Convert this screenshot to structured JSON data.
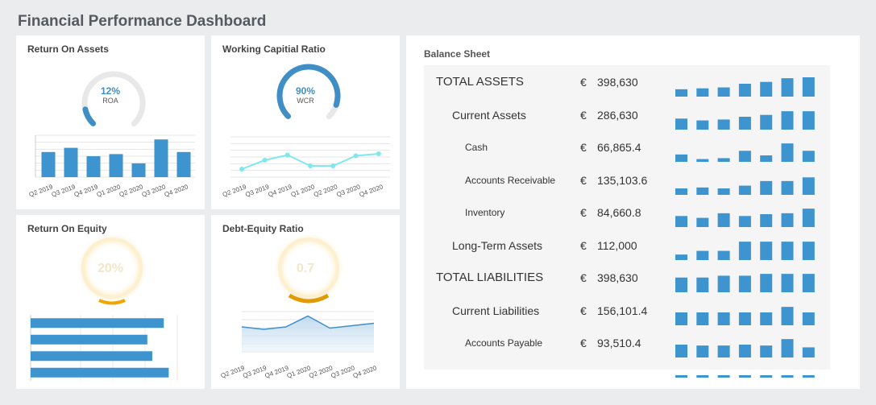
{
  "dashboard": {
    "title": "Financial Performance Dashboard"
  },
  "colors": {
    "bar": "#3d94cf",
    "bar_light": "#5aaee0",
    "gauge_track": "#e8e8e8",
    "line_cyan": "#7ee8ee",
    "accent": "#3f8fc6",
    "amber": "#f0a500"
  },
  "roa": {
    "title": "Return On Assets",
    "gauge": {
      "value_text": "12%",
      "label": "ROA",
      "fraction": 0.12
    }
  },
  "wcr": {
    "title": "Working Capitial Ratio",
    "gauge": {
      "value_text": "90%",
      "label": "WCR",
      "fraction": 0.9
    }
  },
  "roe": {
    "title": "Return On Equity",
    "gauge": {
      "value_text": "20%",
      "fraction": 0.2
    }
  },
  "der": {
    "title": "Debt-Equity Ratio",
    "gauge": {
      "value_text": "0.7",
      "fraction": 0.35
    }
  },
  "chart_data": [
    {
      "type": "bar",
      "chart": "roa",
      "categories": [
        "Q2 2019",
        "Q3 2019",
        "Q4 2019",
        "Q1 2020",
        "Q2 2020",
        "Q3 2020",
        "Q4 2020"
      ],
      "values": [
        6,
        7,
        5,
        5.5,
        3.3,
        9,
        6
      ],
      "ylim": [
        0,
        10
      ],
      "grid": true
    },
    {
      "type": "line",
      "chart": "wcr",
      "categories": [
        "Q2 2019",
        "Q3 2019",
        "Q4 2019",
        "Q1 2020",
        "Q2 2020",
        "Q3 2020",
        "Q4 2020"
      ],
      "values": [
        2,
        4.2,
        5.5,
        2.8,
        2.8,
        5.3,
        5.8
      ],
      "ylim": [
        0,
        10
      ],
      "grid": true
    },
    {
      "type": "bar",
      "chart": "roe",
      "orientation": "horizontal",
      "categories": [
        "",
        "",
        "",
        ""
      ],
      "values": [
        8.1,
        7.1,
        7.4,
        8.4
      ],
      "ylim": [
        0,
        10
      ],
      "grid": true
    },
    {
      "type": "area",
      "chart": "der",
      "categories": [
        "Q2 2019",
        "Q3 2019",
        "Q4 2019",
        "Q1 2020",
        "Q2 2020",
        "Q3 2020",
        "Q4 2020"
      ],
      "values": [
        6.2,
        5.6,
        6.2,
        8.9,
        5.9,
        6.5,
        7.1
      ],
      "ylim": [
        0,
        10
      ],
      "grid": true
    }
  ],
  "balance_sheet": {
    "title": "Balance Sheet",
    "currency": "€",
    "rows": [
      {
        "label": "TOTAL ASSETS",
        "level": 0,
        "value": "398,630",
        "spark": [
          4,
          4.5,
          5,
          7,
          8,
          10,
          10.5
        ]
      },
      {
        "label": "Current Assets",
        "level": 1,
        "value": "286,630",
        "spark": [
          6,
          5,
          5.5,
          7,
          8,
          10,
          10
        ]
      },
      {
        "label": "Cash",
        "level": 2,
        "value": "66,865.4",
        "spark": [
          4,
          1.5,
          2,
          6,
          3.5,
          10,
          6
        ]
      },
      {
        "label": "Accounts Receivable",
        "level": 2,
        "value": "135,103.6",
        "spark": [
          3.5,
          4,
          3.5,
          5,
          7.5,
          7.5,
          9.5
        ]
      },
      {
        "label": "Inventory",
        "level": 2,
        "value": "84,660.8",
        "spark": [
          6,
          5,
          7.5,
          6,
          7,
          7.5,
          10
        ]
      },
      {
        "label": "Long-Term Assets",
        "level": 1,
        "value": "112,000",
        "spark": [
          3,
          5,
          5,
          10,
          10,
          10,
          10
        ]
      },
      {
        "label": "TOTAL LIABILITIES",
        "level": 0,
        "value": "398,630",
        "spark": [
          8,
          8,
          9,
          9,
          10,
          10,
          10
        ]
      },
      {
        "label": "Current Liabilities",
        "level": 1,
        "value": "156,101.4",
        "spark": [
          7,
          7,
          7,
          7,
          7,
          10,
          7
        ]
      },
      {
        "label": "Accounts Payable",
        "level": 2,
        "value": "93,510.4",
        "spark": [
          7,
          6.5,
          6.5,
          7,
          6.5,
          10,
          5.5
        ]
      },
      {
        "label": "",
        "level": 2,
        "value": "",
        "spark": [
          1,
          1,
          1,
          1,
          1,
          1,
          1
        ]
      }
    ]
  }
}
